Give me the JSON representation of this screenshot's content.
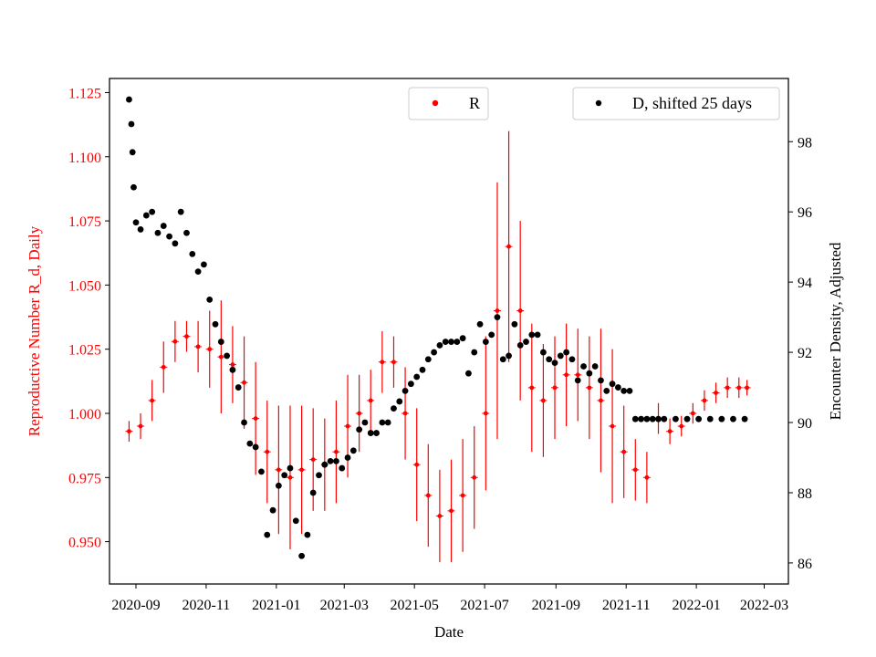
{
  "chart_data": {
    "type": "scatter",
    "xlabel": "Date",
    "ylabel_left": "Reproductive Number R_d, Daily",
    "ylabel_right": "Encounter Density, Adjusted",
    "x_ticks": [
      "2020-09",
      "2020-11",
      "2021-01",
      "2021-03",
      "2021-05",
      "2021-07",
      "2021-09",
      "2021-11",
      "2022-01",
      "2022-03"
    ],
    "x_tick_dates": [
      "2020-09-01",
      "2020-11-01",
      "2021-01-01",
      "2021-03-01",
      "2021-05-01",
      "2021-07-01",
      "2021-09-01",
      "2021-11-01",
      "2022-01-01",
      "2022-03-01"
    ],
    "xlim": [
      "2020-08-09",
      "2022-03-22"
    ],
    "y_left_ticks": [
      "0.950",
      "0.975",
      "1.000",
      "1.025",
      "1.050",
      "1.075",
      "1.100",
      "1.125"
    ],
    "y_left_lim": [
      0.9335,
      1.1305
    ],
    "y_right_ticks": [
      "86",
      "88",
      "90",
      "92",
      "94",
      "96",
      "98"
    ],
    "y_right_lim": [
      85.4,
      99.8
    ],
    "colors": {
      "R": "#ff0000",
      "D": "#000000"
    },
    "series": [
      {
        "name": "R",
        "axis": "left",
        "color": "#ff0000",
        "marker": "dot with vertical error bar",
        "x": [
          "2020-08-26",
          "2020-09-05",
          "2020-09-15",
          "2020-09-25",
          "2020-10-05",
          "2020-10-15",
          "2020-10-25",
          "2020-11-04",
          "2020-11-14",
          "2020-11-24",
          "2020-12-04",
          "2020-12-14",
          "2020-12-24",
          "2021-01-03",
          "2021-01-13",
          "2021-01-23",
          "2021-02-02",
          "2021-02-12",
          "2021-02-22",
          "2021-03-04",
          "2021-03-14",
          "2021-03-24",
          "2021-04-03",
          "2021-04-13",
          "2021-04-23",
          "2021-05-03",
          "2021-05-13",
          "2021-05-23",
          "2021-06-02",
          "2021-06-12",
          "2021-06-22",
          "2021-07-02",
          "2021-07-12",
          "2021-07-22",
          "2021-08-01",
          "2021-08-11",
          "2021-08-21",
          "2021-08-31",
          "2021-09-10",
          "2021-09-20",
          "2021-09-30",
          "2021-10-10",
          "2021-10-20",
          "2021-10-30",
          "2021-11-09",
          "2021-11-19",
          "2021-11-29",
          "2021-12-09",
          "2021-12-19",
          "2021-12-29",
          "2022-01-08",
          "2022-01-18",
          "2022-01-28",
          "2022-02-07",
          "2022-02-14"
        ],
        "y": [
          0.993,
          0.995,
          1.005,
          1.018,
          1.028,
          1.03,
          1.026,
          1.025,
          1.022,
          1.019,
          1.012,
          0.998,
          0.985,
          0.978,
          0.975,
          0.978,
          0.982,
          0.98,
          0.985,
          0.995,
          1.0,
          1.005,
          1.02,
          1.02,
          1.0,
          0.98,
          0.968,
          0.96,
          0.962,
          0.968,
          0.975,
          1.0,
          1.04,
          1.065,
          1.04,
          1.01,
          1.005,
          1.01,
          1.015,
          1.015,
          1.01,
          1.005,
          0.995,
          0.985,
          0.978,
          0.975,
          0.998,
          0.993,
          0.995,
          1.0,
          1.005,
          1.008,
          1.01,
          1.01,
          1.01
        ],
        "err": [
          0.004,
          0.005,
          0.008,
          0.01,
          0.008,
          0.006,
          0.01,
          0.015,
          0.022,
          0.015,
          0.018,
          0.022,
          0.02,
          0.025,
          0.028,
          0.025,
          0.02,
          0.018,
          0.02,
          0.02,
          0.015,
          0.012,
          0.012,
          0.01,
          0.018,
          0.022,
          0.02,
          0.018,
          0.02,
          0.022,
          0.02,
          0.03,
          0.05,
          0.045,
          0.035,
          0.025,
          0.022,
          0.02,
          0.02,
          0.018,
          0.02,
          0.028,
          0.03,
          0.018,
          0.012,
          0.01,
          0.006,
          0.005,
          0.004,
          0.004,
          0.004,
          0.004,
          0.004,
          0.004,
          0.003
        ]
      },
      {
        "name": "D, shifted 25 days",
        "axis": "right",
        "color": "#000000",
        "marker": "dot",
        "x": [
          "2020-08-26",
          "2020-08-28",
          "2020-08-29",
          "2020-08-30",
          "2020-09-01",
          "2020-09-05",
          "2020-09-10",
          "2020-09-15",
          "2020-09-20",
          "2020-09-25",
          "2020-09-30",
          "2020-10-05",
          "2020-10-10",
          "2020-10-15",
          "2020-10-20",
          "2020-10-25",
          "2020-10-30",
          "2020-11-04",
          "2020-11-09",
          "2020-11-14",
          "2020-11-19",
          "2020-11-24",
          "2020-11-29",
          "2020-12-04",
          "2020-12-09",
          "2020-12-14",
          "2020-12-19",
          "2020-12-24",
          "2020-12-29",
          "2021-01-03",
          "2021-01-08",
          "2021-01-13",
          "2021-01-18",
          "2021-01-23",
          "2021-01-28",
          "2021-02-02",
          "2021-02-07",
          "2021-02-12",
          "2021-02-17",
          "2021-02-22",
          "2021-02-27",
          "2021-03-04",
          "2021-03-09",
          "2021-03-14",
          "2021-03-19",
          "2021-03-24",
          "2021-03-29",
          "2021-04-03",
          "2021-04-08",
          "2021-04-13",
          "2021-04-18",
          "2021-04-23",
          "2021-04-28",
          "2021-05-03",
          "2021-05-08",
          "2021-05-13",
          "2021-05-18",
          "2021-05-23",
          "2021-05-28",
          "2021-06-02",
          "2021-06-07",
          "2021-06-12",
          "2021-06-17",
          "2021-06-22",
          "2021-06-27",
          "2021-07-02",
          "2021-07-07",
          "2021-07-12",
          "2021-07-17",
          "2021-07-22",
          "2021-07-27",
          "2021-08-01",
          "2021-08-06",
          "2021-08-11",
          "2021-08-16",
          "2021-08-21",
          "2021-08-26",
          "2021-08-31",
          "2021-09-05",
          "2021-09-10",
          "2021-09-15",
          "2021-09-20",
          "2021-09-25",
          "2021-09-30",
          "2021-10-05",
          "2021-10-10",
          "2021-10-15",
          "2021-10-20",
          "2021-10-25",
          "2021-10-30",
          "2021-11-04",
          "2021-11-09",
          "2021-11-14",
          "2021-11-19",
          "2021-11-24",
          "2021-11-29",
          "2021-12-04",
          "2021-12-14",
          "2021-12-24",
          "2022-01-03",
          "2022-01-13",
          "2022-01-23",
          "2022-02-02",
          "2022-02-12"
        ],
        "y": [
          99.2,
          98.5,
          97.7,
          96.7,
          95.7,
          95.5,
          95.9,
          96.0,
          95.4,
          95.6,
          95.3,
          95.1,
          96.0,
          95.4,
          94.8,
          94.3,
          94.5,
          93.5,
          92.8,
          92.3,
          91.9,
          91.5,
          91.0,
          90.0,
          89.4,
          89.3,
          88.6,
          86.8,
          87.5,
          88.2,
          88.5,
          88.7,
          87.2,
          86.2,
          86.8,
          88.0,
          88.5,
          88.8,
          88.9,
          88.9,
          88.7,
          89.0,
          89.2,
          89.8,
          90.0,
          89.7,
          89.7,
          90.0,
          90.0,
          90.4,
          90.6,
          90.9,
          91.1,
          91.3,
          91.5,
          91.8,
          92.0,
          92.2,
          92.3,
          92.3,
          92.3,
          92.4,
          91.4,
          92.0,
          92.8,
          92.3,
          92.5,
          93.0,
          91.8,
          91.9,
          92.8,
          92.2,
          92.3,
          92.5,
          92.5,
          92.0,
          91.8,
          91.7,
          91.9,
          92.0,
          91.8,
          91.2,
          91.6,
          91.4,
          91.6,
          91.2,
          90.9,
          91.1,
          91.0,
          90.9,
          90.9,
          90.1,
          90.1,
          90.1,
          90.1,
          90.1,
          90.1,
          90.1,
          90.1,
          90.1,
          90.1,
          90.1,
          90.1,
          90.1
        ]
      }
    ],
    "legends": [
      {
        "position": "top-center",
        "entries": [
          "R"
        ]
      },
      {
        "position": "top-right",
        "entries": [
          "D, shifted 25 days"
        ]
      }
    ],
    "grid": false
  }
}
